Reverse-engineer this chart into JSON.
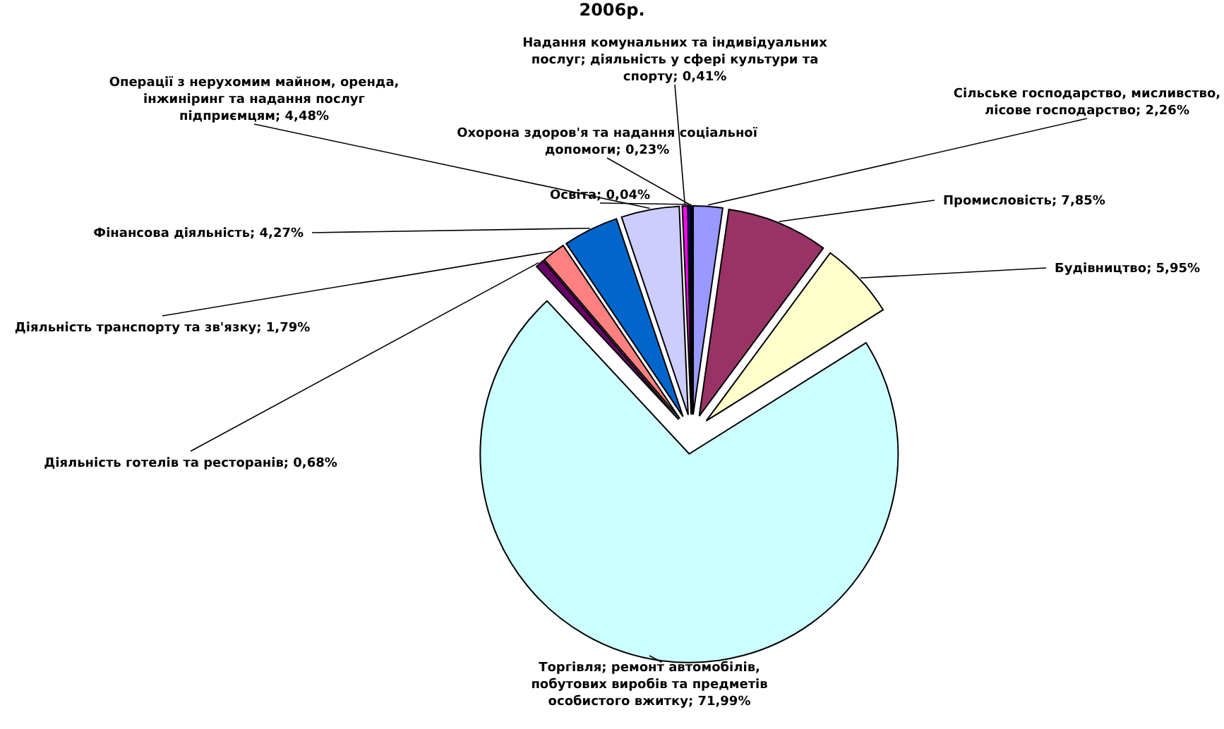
{
  "chart_data": {
    "type": "pie",
    "title": "2006р.",
    "categories": [
      "Сільське господарство, мисливство, лісове господарство",
      "Промисловість",
      "Будівництво",
      "Торгівля; ремонт автомобілів, побутових виробів та предметів особистого вжитку",
      "Діяльність готелів та ресторанів",
      "Діяльність транспорту та зв'язку",
      "Фінансова діяльність",
      "Операції з нерухомим майном, оренда, інжиніринг та надання послуг підприємцям",
      "Надання комунальних та індивідуальних послуг; діяльність у сфері культури та спорту",
      "Охорона здоров'я та надання соціальної допомоги",
      "Освіта"
    ],
    "values": [
      2.26,
      7.85,
      5.95,
      71.99,
      0.68,
      1.79,
      4.27,
      4.48,
      0.41,
      0.23,
      0.04
    ],
    "colors": [
      "#9999ff",
      "#993366",
      "#ffffcc",
      "#ccffff",
      "#660066",
      "#ff8080",
      "#0066cc",
      "#ccccff",
      "#ff00ff",
      "#000080",
      "#ffff00"
    ],
    "value_labels": [
      "2,26%",
      "7,85%",
      "5,95%",
      "71,99%",
      "0,68%",
      "1,79%",
      "4,27%",
      "4,48%",
      "0,41%",
      "0,23%",
      "0,04%"
    ]
  }
}
